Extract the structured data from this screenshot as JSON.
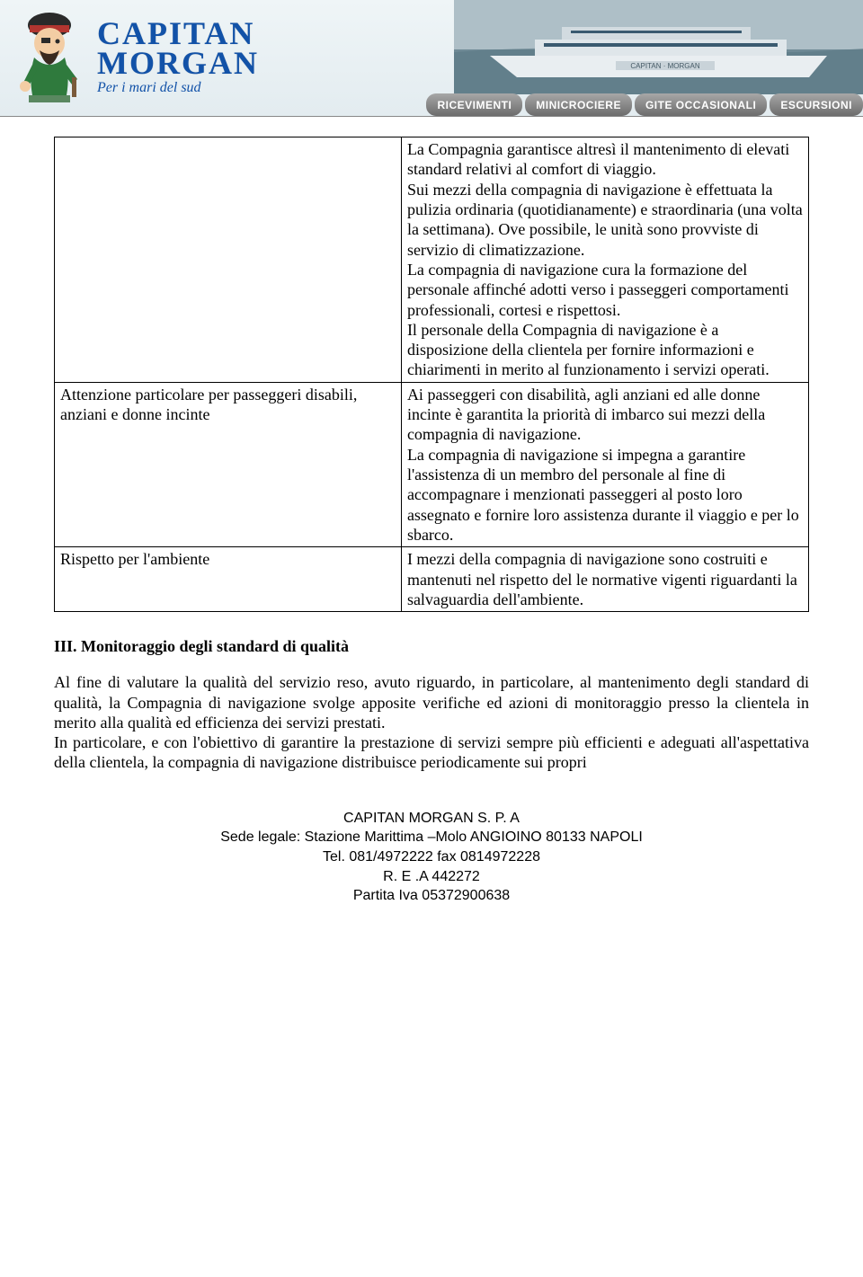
{
  "banner": {
    "title_line1": "CAPITAN",
    "title_line2": "MORGAN",
    "subtitle": "Per i mari del sud",
    "boat_label": "CAPITAN - MORGAN",
    "nav": [
      "RICEVIMENTI",
      "MINICROCIERE",
      "GITE OCCASIONALI",
      "ESCURSIONI"
    ],
    "colors": {
      "title": "#1252a8",
      "nav_bg_top": "#a7a7a7",
      "nav_bg_bottom": "#6c6c6c",
      "nav_text": "#ffffff",
      "banner_bg_top": "#eff5f7"
    }
  },
  "table": {
    "rows": [
      {
        "left": "",
        "right": "La Compagnia garantisce altresì il mantenimento di elevati standard relativi al comfort di viaggio.\nSui mezzi della compagnia di navigazione è effettuata la pulizia ordinaria (quotidianamente) e straordinaria (una volta la settimana). Ove possibile, le unità sono provviste di servizio di climatizzazione.\nLa compagnia di navigazione cura la formazione del personale affinché adotti verso i passeggeri comportamenti professionali, cortesi e rispettosi.\nIl personale della Compagnia di navigazione è a disposizione della clientela per fornire informazioni e chiarimenti in merito al funzionamento i servizi operati."
      },
      {
        "left": "Attenzione particolare per passeggeri disabili, anziani e donne incinte",
        "right": "Ai passeggeri con disabilità, agli anziani ed alle donne incinte è garantita la priorità di imbarco sui mezzi della compagnia di navigazione.\nLa compagnia di navigazione si impegna a garantire l'assistenza di un membro del personale al fine di accompagnare i menzionati passeggeri al posto loro assegnato e fornire loro assistenza durante il viaggio e per lo sbarco."
      },
      {
        "left": "Rispetto per l'ambiente",
        "right": "I mezzi della compagnia di navigazione sono costruiti e mantenuti nel rispetto del le normative vigenti riguardanti la salvaguardia dell'ambiente."
      }
    ]
  },
  "section3": {
    "heading": "III. Monitoraggio degli standard di qualità",
    "para1": "Al fine di valutare la qualità del servizio reso, avuto riguardo, in particolare, al mantenimento degli standard di qualità, la Compagnia di navigazione svolge apposite verifiche ed azioni di monitoraggio presso la clientela in merito alla qualità ed efficienza dei servizi prestati.",
    "para2": "In particolare, e con l'obiettivo di garantire la prestazione di servizi sempre più efficienti e adeguati all'aspettativa della clientela, la compagnia di navigazione distribuisce periodicamente sui propri"
  },
  "footer": {
    "l1": "CAPITAN MORGAN  S. P. A",
    "l2": "Sede legale: Stazione Marittima –Molo ANGIOINO 80133 NAPOLI",
    "l3": "Tel. 081/4972222 fax 0814972228",
    "l4": "R. E .A   442272",
    "l5": "Partita Iva 05372900638"
  }
}
